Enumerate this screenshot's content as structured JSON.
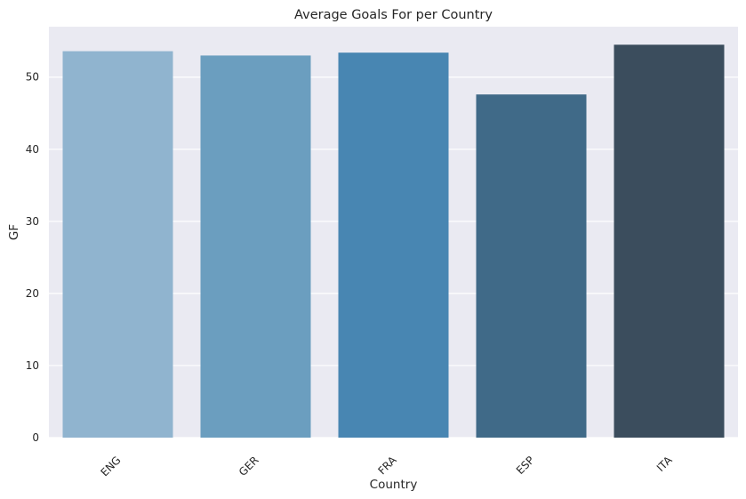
{
  "chart_data": {
    "type": "bar",
    "title": "Average Goals For per Country",
    "xlabel": "Country",
    "ylabel": "GF",
    "categories": [
      "ENG",
      "GER",
      "FRA",
      "ESP",
      "ITA"
    ],
    "values": [
      53.6,
      53.0,
      53.4,
      47.6,
      54.5
    ],
    "bar_colors": [
      "#90b4cf",
      "#6b9ebf",
      "#4886b2",
      "#406a88",
      "#3b4d5d"
    ],
    "ylim": [
      0,
      57
    ],
    "yticks": [
      0,
      10,
      20,
      30,
      40,
      50
    ],
    "grid": true,
    "legend": "none",
    "background_color": "#eaeaf2"
  }
}
